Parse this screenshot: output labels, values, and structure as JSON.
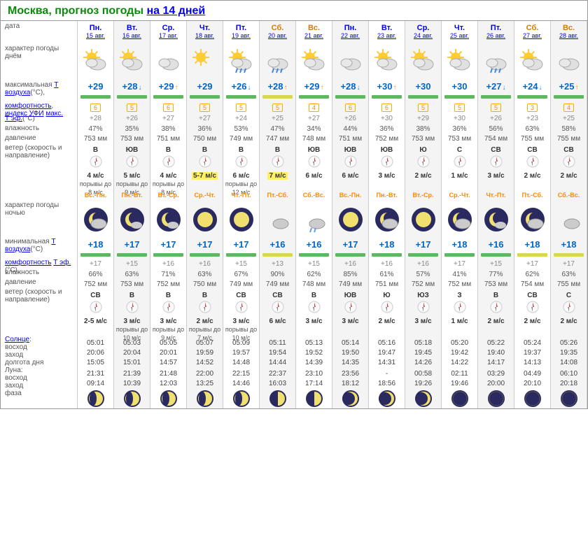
{
  "title_city": "Москва, прогноз погоды",
  "title_link": "на 14 дней",
  "labels": {
    "date": "дата",
    "day_weather": "характер погоды днём",
    "max_temp": "максимальная",
    "t_air": "Т воздуха",
    "t_air_unit": "(°C),",
    "comfort": "комфортность",
    "t_eff": "Т эф.",
    "t_eff_unit": "(°C)",
    "uv": "индекс УФИ",
    "uv_max": "макс.",
    "humidity": "влажность",
    "pressure": "давление",
    "wind": "ветер (скорость и направление)",
    "night_weather": "характер погоды ночью",
    "min_temp": "минимальная",
    "sun": "Солнце",
    "sunrise": "восход",
    "sunset": "заход",
    "daylen": "долгота дня",
    "moon": "Луна",
    "phase": "фаза"
  },
  "colors": {
    "title": "#0a8a0a",
    "link": "#0000ee",
    "weekend": "#d87a00",
    "temp": "#0066cc",
    "trend_up": "#ff8800",
    "trend_down": "#0088ff",
    "uv_border": "#ffaa00",
    "alt_bg": "#f4f4f4",
    "bar_green": "#5fb85f",
    "bar_yellow": "#d8d850",
    "bar_gray": "#cccccc",
    "night_sky": "#2a2a60",
    "moon_body": "#f0e070"
  },
  "days": [
    {
      "dow": "Пн.",
      "date": "15 авг.",
      "we": false,
      "day_icon": "sun-cloud",
      "tmax": "+29",
      "trend": "",
      "bar": "green",
      "uv": "6",
      "comfort": "+28",
      "hum": "47%",
      "press": "753 мм",
      "wdir": "B",
      "wspd": "4 м/с",
      "gusts": "порывы до 8 м/с",
      "nlbl": "Вc.-Пн.",
      "night_icon": "moon-cloud",
      "tmin": "+18",
      "nbar": "green",
      "ncomfort": "+17",
      "nhum": "66%",
      "npress": "752 мм",
      "nwdir": "СВ",
      "nwspd": "2-5 м/с",
      "ngusts": "",
      "sunrise": "05:01",
      "sunset": "20:06",
      "daylen": "15:05",
      "moonrise": "21:31",
      "moonset": "09:14",
      "moon": "gib-wax"
    },
    {
      "dow": "Вт.",
      "date": "16 авг.",
      "we": false,
      "day_icon": "sun-cloud-2",
      "tmax": "+28",
      "trend": "down",
      "bar": "green",
      "uv": "5",
      "comfort": "+26",
      "hum": "35%",
      "press": "753 мм",
      "wdir": "ЮВ",
      "wspd": "5 м/с",
      "gusts": "порывы до 9 м/с",
      "nlbl": "Пн.-Вт.",
      "night_icon": "moon-small-cloud",
      "tmin": "+17",
      "nbar": "green",
      "ncomfort": "+15",
      "nhum": "63%",
      "npress": "753 мм",
      "nwdir": "B",
      "nwspd": "3 м/с",
      "ngusts": "порывы до 10 м/с",
      "sunrise": "05:03",
      "sunset": "20:04",
      "daylen": "15:01",
      "moonrise": "21:39",
      "moonset": "10:39",
      "moon": "gib-wax"
    },
    {
      "dow": "Ср.",
      "date": "17 авг.",
      "we": false,
      "day_icon": "cloud",
      "tmax": "+29",
      "trend": "up",
      "bar": "green",
      "uv": "6",
      "comfort": "+27",
      "hum": "38%",
      "press": "751 мм",
      "wdir": "B",
      "wspd": "4 м/с",
      "gusts": "порывы до 8 м/с",
      "nlbl": "Вт.-Ср.",
      "night_icon": "moon-small-cloud",
      "tmin": "+17",
      "nbar": "green",
      "ncomfort": "+16",
      "nhum": "71%",
      "npress": "752 мм",
      "nwdir": "B",
      "nwspd": "3 м/с",
      "ngusts": "порывы до 9 м/с",
      "sunrise": "05:05",
      "sunset": "20:01",
      "daylen": "14:57",
      "moonrise": "21:48",
      "moonset": "12:03",
      "moon": "gib-wax"
    },
    {
      "dow": "Чт.",
      "date": "18 авг.",
      "we": false,
      "day_icon": "sun",
      "tmax": "+29",
      "trend": "",
      "bar": "green",
      "uv": "5",
      "comfort": "+27",
      "hum": "36%",
      "press": "750 мм",
      "wdir": "B",
      "wspd": "5-7 м/с",
      "wwarn": true,
      "gusts": "",
      "nlbl": "Ср.-Чт.",
      "night_icon": "moon-full",
      "tmin": "+17",
      "nbar": "green",
      "ncomfort": "+16",
      "nhum": "63%",
      "npress": "750 мм",
      "nwdir": "B",
      "nwspd": "2 м/с",
      "ngusts": "порывы до 7 м/с",
      "sunrise": "05:07",
      "sunset": "19:59",
      "daylen": "14:52",
      "moonrise": "22:00",
      "moonset": "13:25",
      "moon": "gib-wax"
    },
    {
      "dow": "Пт.",
      "date": "19 авг.",
      "we": false,
      "day_icon": "sun-rain",
      "tmax": "+26",
      "trend": "down",
      "bar": "green",
      "uv": "5",
      "comfort": "+24",
      "hum": "53%",
      "press": "749 мм",
      "wdir": "B",
      "wspd": "6 м/с",
      "gusts": "порывы до 12 м/с",
      "nlbl": "Чт.-Пт.",
      "night_icon": "moon-full",
      "tmin": "+17",
      "nbar": "green",
      "ncomfort": "+15",
      "nhum": "67%",
      "npress": "749 мм",
      "nwdir": "СВ",
      "nwspd": "3 м/с",
      "ngusts": "порывы до 10 м/с",
      "sunrise": "05:09",
      "sunset": "19:57",
      "daylen": "14:48",
      "moonrise": "22:15",
      "moonset": "14:46",
      "moon": "gib-wax"
    },
    {
      "dow": "Сб.",
      "date": "20 авг.",
      "we": true,
      "day_icon": "cloud-rain",
      "tmax": "+28",
      "trend": "up",
      "bar": "yellow",
      "uv": "5",
      "comfort": "+25",
      "hum": "47%",
      "press": "747 мм",
      "wdir": "B",
      "wspd": "7 м/с",
      "wwarn": true,
      "gusts": "",
      "nlbl": "Пт.-Сб.",
      "night_icon": "cloud-night",
      "tmin": "+16",
      "nbar": "yellow",
      "ncomfort": "+13",
      "nhum": "90%",
      "npress": "749 мм",
      "nwdir": "СВ",
      "nwspd": "6 м/с",
      "ngusts": "",
      "sunrise": "05:11",
      "sunset": "19:54",
      "daylen": "14:44",
      "moonrise": "22:37",
      "moonset": "16:03",
      "moon": "last-q"
    },
    {
      "dow": "Вс.",
      "date": "21 авг.",
      "we": true,
      "day_icon": "sun-cloud",
      "tmax": "+29",
      "trend": "up",
      "bar": "green",
      "uv": "4",
      "comfort": "+27",
      "hum": "34%",
      "press": "748 мм",
      "wdir": "ЮВ",
      "wspd": "6 м/с",
      "gusts": "",
      "nlbl": "Сб.-Вс.",
      "night_icon": "cloud-rain-night",
      "tmin": "+16",
      "nbar": "green",
      "ncomfort": "+15",
      "nhum": "62%",
      "npress": "748 мм",
      "nwdir": "B",
      "nwspd": "3 м/с",
      "ngusts": "",
      "sunrise": "05:13",
      "sunset": "19:52",
      "daylen": "14:39",
      "moonrise": "23:10",
      "moonset": "17:14",
      "moon": "last-q"
    },
    {
      "dow": "Пн.",
      "date": "22 авг.",
      "we": false,
      "day_icon": "cloud",
      "tmax": "+28",
      "trend": "down",
      "bar": "green",
      "uv": "6",
      "comfort": "+26",
      "hum": "44%",
      "press": "751 мм",
      "wdir": "ЮВ",
      "wspd": "6 м/с",
      "gusts": "",
      "nlbl": "Вс.-Пн.",
      "night_icon": "moon-full",
      "tmin": "+17",
      "nbar": "green",
      "ncomfort": "+16",
      "nhum": "85%",
      "npress": "749 мм",
      "nwdir": "ЮВ",
      "nwspd": "3 м/с",
      "ngusts": "",
      "sunrise": "05:14",
      "sunset": "19:50",
      "daylen": "14:35",
      "moonrise": "23:56",
      "moonset": "18:12",
      "moon": "wan-cres"
    },
    {
      "dow": "Вт.",
      "date": "23 авг.",
      "we": false,
      "day_icon": "sun-cloud",
      "tmax": "+30",
      "trend": "up",
      "bar": "green",
      "uv": "6",
      "comfort": "+30",
      "hum": "36%",
      "press": "752 мм",
      "wdir": "ЮВ",
      "wspd": "3 м/с",
      "gusts": "",
      "nlbl": "Пн.-Вт.",
      "night_icon": "moon-cloud",
      "tmin": "+18",
      "nbar": "green",
      "ncomfort": "+16",
      "nhum": "61%",
      "npress": "751 мм",
      "nwdir": "Ю",
      "nwspd": "2 м/с",
      "ngusts": "",
      "sunrise": "05:16",
      "sunset": "19:47",
      "daylen": "14:31",
      "moonrise": "-",
      "moonset": "18:56",
      "moon": "wan-cres"
    },
    {
      "dow": "Ср.",
      "date": "24 авг.",
      "we": false,
      "day_icon": "sun-cloud",
      "tmax": "+30",
      "trend": "",
      "bar": "green",
      "uv": "5",
      "comfort": "+29",
      "hum": "38%",
      "press": "753 мм",
      "wdir": "Ю",
      "wspd": "2 м/с",
      "gusts": "",
      "nlbl": "Вт.-Ср.",
      "night_icon": "moon-full",
      "tmin": "+17",
      "nbar": "green",
      "ncomfort": "+16",
      "nhum": "57%",
      "npress": "752 мм",
      "nwdir": "ЮЗ",
      "nwspd": "3 м/с",
      "ngusts": "",
      "sunrise": "05:18",
      "sunset": "19:45",
      "daylen": "14:26",
      "moonrise": "00:58",
      "moonset": "19:26",
      "moon": "wan-cres"
    },
    {
      "dow": "Чт.",
      "date": "25 авг.",
      "we": false,
      "day_icon": "sun-cloud",
      "tmax": "+30",
      "trend": "",
      "bar": "green",
      "uv": "5",
      "comfort": "+30",
      "hum": "36%",
      "press": "753 мм",
      "wdir": "С",
      "wspd": "1 м/с",
      "gusts": "",
      "nlbl": "Ср.-Чт.",
      "night_icon": "moon-cloud",
      "tmin": "+18",
      "nbar": "green",
      "ncomfort": "+17",
      "nhum": "41%",
      "npress": "752 мм",
      "nwdir": "З",
      "nwspd": "1 м/с",
      "ngusts": "",
      "sunrise": "05:20",
      "sunset": "19:42",
      "daylen": "14:22",
      "moonrise": "02:11",
      "moonset": "19:46",
      "moon": "new"
    },
    {
      "dow": "Пт.",
      "date": "26 авг.",
      "we": false,
      "day_icon": "cloud-rain",
      "tmax": "+27",
      "trend": "down",
      "bar": "green",
      "uv": "5",
      "comfort": "+26",
      "hum": "56%",
      "press": "754 мм",
      "wdir": "СВ",
      "wspd": "3 м/с",
      "gusts": "",
      "nlbl": "Чт.-Пт.",
      "night_icon": "moon-small-cloud",
      "tmin": "+16",
      "nbar": "green",
      "ncomfort": "+15",
      "nhum": "77%",
      "npress": "753 мм",
      "nwdir": "B",
      "nwspd": "2 м/с",
      "ngusts": "",
      "sunrise": "05:22",
      "sunset": "19:40",
      "daylen": "14:17",
      "moonrise": "03:29",
      "moonset": "20:00",
      "moon": "new"
    },
    {
      "dow": "Сб.",
      "date": "27 авг.",
      "we": true,
      "day_icon": "sun-cloud",
      "tmax": "+24",
      "trend": "down",
      "bar": "green",
      "uv": "3",
      "comfort": "+23",
      "hum": "63%",
      "press": "755 мм",
      "wdir": "СВ",
      "wspd": "2 м/с",
      "gusts": "",
      "nlbl": "Пт.-Сб.",
      "night_icon": "moon-cloud",
      "tmin": "+18",
      "nbar": "yellow",
      "ncomfort": "+17",
      "nhum": "62%",
      "npress": "754 мм",
      "nwdir": "СВ",
      "nwspd": "2 м/с",
      "ngusts": "",
      "sunrise": "05:24",
      "sunset": "19:37",
      "daylen": "14:13",
      "moonrise": "04:49",
      "moonset": "20:10",
      "moon": "new"
    },
    {
      "dow": "Вс.",
      "date": "28 авг.",
      "we": true,
      "day_icon": "cloud",
      "tmax": "+25",
      "trend": "up",
      "bar": "green",
      "uv": "4",
      "comfort": "+25",
      "hum": "58%",
      "press": "755 мм",
      "wdir": "СВ",
      "wspd": "2 м/с",
      "gusts": "",
      "nlbl": "Сб.-Вс.",
      "night_icon": "cloud-night",
      "tmin": "+18",
      "nbar": "yellow",
      "ncomfort": "+17",
      "nhum": "63%",
      "npress": "755 мм",
      "nwdir": "С",
      "nwspd": "2 м/с",
      "ngusts": "",
      "sunrise": "05:26",
      "sunset": "19:35",
      "daylen": "14:08",
      "moonrise": "06:10",
      "moonset": "20:18",
      "moon": "new"
    }
  ]
}
